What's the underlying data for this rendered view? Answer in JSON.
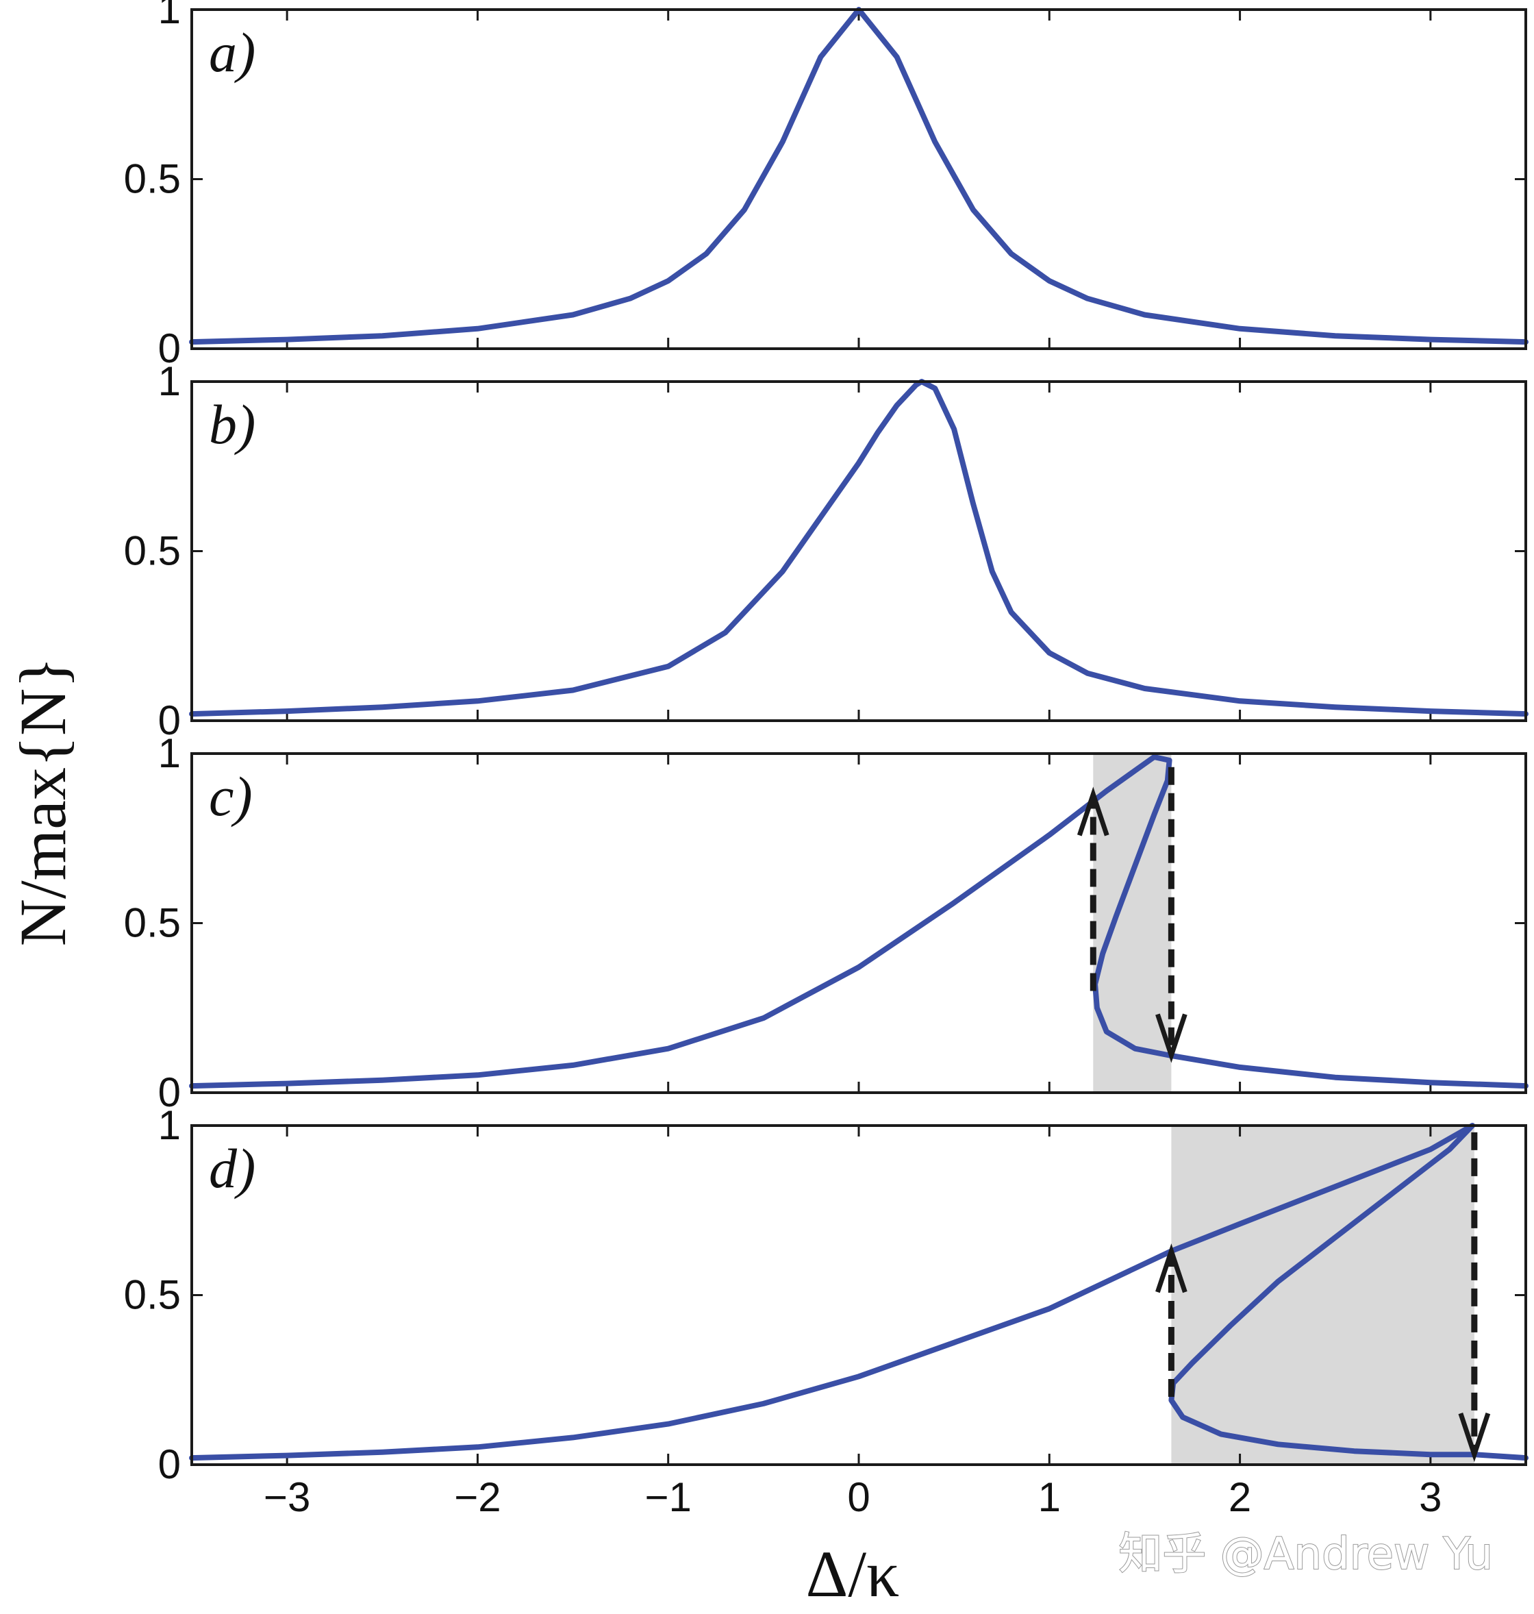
{
  "figure": {
    "ylabel": "N/max{N}",
    "xlabel": "Δ/κ",
    "watermark": "知乎 @Andrew Yu"
  },
  "colors": {
    "curve": "#3a4fa6",
    "shade": "#d9d9d9",
    "arrow": "#1a1a1a",
    "axis": "#1a1a1a"
  },
  "chart_data": [
    {
      "type": "line",
      "panel": "a)",
      "xlim": [
        -3.5,
        3.5
      ],
      "ylim": [
        0,
        1
      ],
      "xticks": [
        -3,
        -2,
        -1,
        0,
        1,
        2,
        3
      ],
      "yticks": [
        "0",
        "0.5",
        "1"
      ],
      "show_x_ticklabels": false,
      "series": [
        {
          "x": [
            -3.5,
            -3.0,
            -2.5,
            -2.0,
            -1.5,
            -1.2,
            -1.0,
            -0.8,
            -0.6,
            -0.4,
            -0.2,
            0.0,
            0.2,
            0.4,
            0.6,
            0.8,
            1.0,
            1.2,
            1.5,
            2.0,
            2.5,
            3.0,
            3.5
          ],
          "y": [
            0.02,
            0.027,
            0.038,
            0.059,
            0.1,
            0.148,
            0.2,
            0.28,
            0.41,
            0.61,
            0.86,
            1.0,
            0.86,
            0.61,
            0.41,
            0.28,
            0.2,
            0.148,
            0.1,
            0.059,
            0.038,
            0.027,
            0.02
          ]
        }
      ],
      "shaded_region": null,
      "arrows": []
    },
    {
      "type": "line",
      "panel": "b)",
      "xlim": [
        -3.5,
        3.5
      ],
      "ylim": [
        0,
        1
      ],
      "xticks": [
        -3,
        -2,
        -1,
        0,
        1,
        2,
        3
      ],
      "yticks": [
        "0",
        "0.5",
        "1"
      ],
      "show_x_ticklabels": false,
      "series": [
        {
          "x": [
            -3.5,
            -3.0,
            -2.5,
            -2.0,
            -1.5,
            -1.0,
            -0.7,
            -0.4,
            -0.2,
            0.0,
            0.1,
            0.2,
            0.3,
            0.33,
            0.4,
            0.5,
            0.6,
            0.7,
            0.8,
            1.0,
            1.2,
            1.5,
            2.0,
            2.5,
            3.0,
            3.5
          ],
          "y": [
            0.02,
            0.028,
            0.04,
            0.058,
            0.09,
            0.16,
            0.26,
            0.44,
            0.6,
            0.76,
            0.85,
            0.93,
            0.99,
            1.0,
            0.98,
            0.86,
            0.64,
            0.44,
            0.32,
            0.2,
            0.14,
            0.095,
            0.058,
            0.04,
            0.028,
            0.02
          ]
        }
      ],
      "shaded_region": null,
      "arrows": []
    },
    {
      "type": "line",
      "panel": "c)",
      "xlim": [
        -3.5,
        3.5
      ],
      "ylim": [
        0,
        1
      ],
      "xticks": [
        -3,
        -2,
        -1,
        0,
        1,
        2,
        3
      ],
      "yticks": [
        "0",
        "0.5",
        "1"
      ],
      "show_x_ticklabels": false,
      "series": [
        {
          "x": [
            -3.5,
            -3.0,
            -2.5,
            -2.0,
            -1.5,
            -1.0,
            -0.5,
            0.0,
            0.5,
            1.0,
            1.3,
            1.45,
            1.55,
            1.63,
            1.62,
            1.55,
            1.45,
            1.35,
            1.28,
            1.24,
            1.25,
            1.3,
            1.45,
            1.63,
            2.0,
            2.5,
            3.0,
            3.5
          ],
          "y": [
            0.02,
            0.027,
            0.037,
            0.052,
            0.081,
            0.13,
            0.22,
            0.37,
            0.56,
            0.76,
            0.89,
            0.95,
            0.99,
            0.98,
            0.92,
            0.82,
            0.67,
            0.52,
            0.41,
            0.32,
            0.25,
            0.18,
            0.13,
            0.11,
            0.075,
            0.045,
            0.03,
            0.02
          ]
        }
      ],
      "shaded_region": [
        1.23,
        1.64
      ],
      "arrows": [
        {
          "x": 1.23,
          "from": 0.3,
          "to": 0.88,
          "direction": "up"
        },
        {
          "x": 1.64,
          "from": 0.96,
          "to": 0.11,
          "direction": "down"
        }
      ]
    },
    {
      "type": "line",
      "panel": "d)",
      "xlim": [
        -3.5,
        3.5
      ],
      "ylim": [
        0,
        1
      ],
      "xticks": [
        -3,
        -2,
        -1,
        0,
        1,
        2,
        3
      ],
      "yticks": [
        "0",
        "0.5",
        "1"
      ],
      "show_x_ticklabels": true,
      "xticklabels": [
        "−3",
        "−2",
        "−1",
        "0",
        "1",
        "2",
        "3"
      ],
      "series": [
        {
          "x": [
            -3.5,
            -3.0,
            -2.5,
            -2.0,
            -1.5,
            -1.0,
            -0.5,
            0.0,
            0.5,
            1.0,
            1.64,
            2.0,
            2.5,
            3.0,
            3.22,
            3.1,
            2.8,
            2.5,
            2.2,
            1.95,
            1.75,
            1.65,
            1.64,
            1.7,
            1.9,
            2.2,
            2.6,
            3.0,
            3.23,
            3.5
          ],
          "y": [
            0.02,
            0.027,
            0.037,
            0.052,
            0.08,
            0.12,
            0.18,
            0.26,
            0.36,
            0.46,
            0.63,
            0.71,
            0.82,
            0.93,
            1.0,
            0.93,
            0.8,
            0.67,
            0.54,
            0.41,
            0.3,
            0.24,
            0.19,
            0.14,
            0.09,
            0.06,
            0.04,
            0.03,
            0.03,
            0.02
          ]
        }
      ],
      "shaded_region": [
        1.64,
        3.23
      ],
      "arrows": [
        {
          "x": 1.64,
          "from": 0.2,
          "to": 0.63,
          "direction": "up"
        },
        {
          "x": 3.23,
          "from": 0.98,
          "to": 0.03,
          "direction": "down"
        }
      ]
    }
  ]
}
